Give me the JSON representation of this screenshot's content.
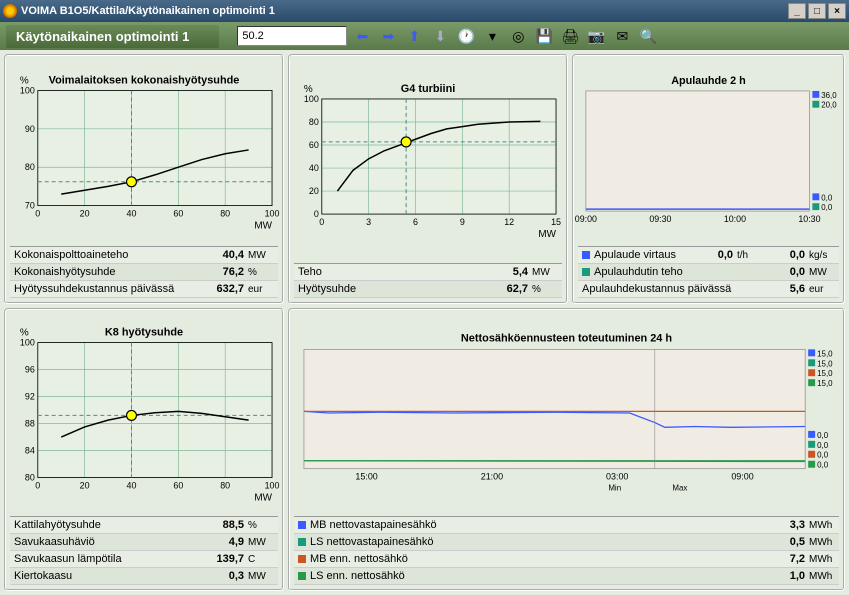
{
  "window": {
    "title": "VOIMA B1O5/Kattila/Käytönaikainen optimointi 1"
  },
  "toolbar": {
    "title": "Käytönaikainen optimointi 1",
    "input_value": "50.2"
  },
  "colors": {
    "grid": "#7fb89a",
    "bg_chart": "#e8f0e4",
    "axis": "#000",
    "curve": "#000",
    "marker_fill": "#ffff00",
    "marker_stroke": "#000",
    "crosshair": "#4a8a8a",
    "blue": "#3a5aff",
    "teal": "#1a9a7a",
    "orange": "#cc5522",
    "green": "#2a9a4a"
  },
  "chart1": {
    "title": "Voimalaitoksen kokonaishyötysuhde",
    "ylabel": "%",
    "xlabel": "MW",
    "xlim": [
      0,
      100
    ],
    "xticks": [
      0,
      20,
      40,
      60,
      80,
      100
    ],
    "ylim": [
      70,
      100
    ],
    "yticks": [
      70,
      80,
      90,
      100
    ],
    "curve": [
      [
        10,
        73
      ],
      [
        20,
        74
      ],
      [
        30,
        75
      ],
      [
        40,
        76.2
      ],
      [
        50,
        78
      ],
      [
        60,
        80
      ],
      [
        70,
        82
      ],
      [
        80,
        83.5
      ],
      [
        90,
        84.5
      ]
    ],
    "marker": [
      40,
      76.2
    ],
    "rows": [
      {
        "label": "Kokonaispolttoaineteho",
        "val": "40,4",
        "unit": "MW"
      },
      {
        "label": "Kokonaishyötysuhde",
        "val": "76,2",
        "unit": "%"
      },
      {
        "label": "Hyötyssuhdekustannus päivässä",
        "val": "632,7",
        "unit": "eur"
      }
    ]
  },
  "chart2": {
    "title": "G4 turbiini",
    "ylabel": "%",
    "xlabel": "MW",
    "xlim": [
      0,
      15
    ],
    "xticks": [
      0,
      3,
      6,
      9,
      12,
      15
    ],
    "ylim": [
      0,
      100
    ],
    "yticks": [
      0,
      20,
      40,
      60,
      80,
      100
    ],
    "curve": [
      [
        1,
        20
      ],
      [
        2,
        38
      ],
      [
        3,
        48
      ],
      [
        4,
        55
      ],
      [
        5,
        60
      ],
      [
        6,
        65
      ],
      [
        7,
        70
      ],
      [
        8,
        74
      ],
      [
        9,
        76
      ],
      [
        10,
        78
      ],
      [
        12,
        80
      ],
      [
        14,
        80.5
      ]
    ],
    "marker": [
      5.4,
      62.7
    ],
    "rows": [
      {
        "label": "Teho",
        "val": "5,4",
        "unit": "MW"
      },
      {
        "label": "Hyötysuhde",
        "val": "62,7",
        "unit": "%"
      }
    ]
  },
  "chart3": {
    "title": "Apulauhde 2 h",
    "xlim": [
      0,
      3
    ],
    "xticks": [
      "09:00",
      "09:30",
      "10:00",
      "10:30"
    ],
    "legend": [
      {
        "label": "36,0",
        "color": "#3a5aff"
      },
      {
        "label": "20,0",
        "color": "#1a9a7a"
      }
    ],
    "base_legend": [
      {
        "label": "0,0",
        "color": "#3a5aff"
      },
      {
        "label": "0,0",
        "color": "#1a9a7a"
      }
    ],
    "rows": [
      {
        "color": "#3a5aff",
        "label": "Apulaude virtaus",
        "val": "0,0",
        "unit": "t/h",
        "val2": "0,0",
        "unit2": "kg/s"
      },
      {
        "color": "#1a9a7a",
        "label": "Apulauhdutin teho",
        "val": "0,0",
        "unit": "MW"
      },
      {
        "label": "Apulauhdekustannus päivässä",
        "val": "5,6",
        "unit": "eur"
      }
    ]
  },
  "chart4": {
    "title": "K8 hyötysuhde",
    "ylabel": "%",
    "xlabel": "MW",
    "xlim": [
      0,
      100
    ],
    "xticks": [
      0,
      20,
      40,
      60,
      80,
      100
    ],
    "ylim": [
      80,
      100
    ],
    "yticks": [
      80,
      84,
      88,
      92,
      96,
      100
    ],
    "curve": [
      [
        10,
        86
      ],
      [
        20,
        87.5
      ],
      [
        30,
        88.5
      ],
      [
        40,
        89.2
      ],
      [
        50,
        89.6
      ],
      [
        60,
        89.8
      ],
      [
        70,
        89.5
      ],
      [
        80,
        89
      ],
      [
        90,
        88.5
      ]
    ],
    "marker": [
      40,
      89.2
    ],
    "rows": [
      {
        "label": "Kattilahyötysuhde",
        "val": "88,5",
        "unit": "%"
      },
      {
        "label": "Savukaasuhäviö",
        "val": "4,9",
        "unit": "MW"
      },
      {
        "label": "Savukaasun lämpötila",
        "val": "139,7",
        "unit": "C"
      },
      {
        "label": "Kiertokaasu",
        "val": "0,3",
        "unit": "MW"
      }
    ]
  },
  "chart5": {
    "title": "Nettosähköennusteen toteutuminen 24 h",
    "xticks": [
      "15:00",
      "21:00",
      "03:00",
      "09:00"
    ],
    "sublabels": [
      "Min",
      "Max"
    ],
    "legend": [
      {
        "label": "15,0",
        "color": "#3a5aff"
      },
      {
        "label": "15,0",
        "color": "#1a9a7a"
      },
      {
        "label": "15,0",
        "color": "#cc5522"
      },
      {
        "label": "15,0",
        "color": "#2a9a4a"
      }
    ],
    "base_legend": [
      {
        "label": "0,0",
        "color": "#3a5aff"
      },
      {
        "label": "0,0",
        "color": "#1a9a7a"
      },
      {
        "label": "0,0",
        "color": "#cc5522"
      },
      {
        "label": "0,0",
        "color": "#2a9a4a"
      }
    ],
    "series": {
      "blue": [
        [
          0,
          7.2
        ],
        [
          5,
          7.0
        ],
        [
          15,
          7.1
        ],
        [
          30,
          7.0
        ],
        [
          50,
          7.1
        ],
        [
          65,
          7.0
        ],
        [
          70,
          5.8
        ],
        [
          72,
          5.2
        ],
        [
          78,
          5.3
        ],
        [
          85,
          5.2
        ],
        [
          100,
          5.3
        ]
      ],
      "teal": [
        [
          0,
          1.0
        ],
        [
          100,
          0.9
        ]
      ],
      "orange": [
        [
          0,
          7.2
        ],
        [
          100,
          7.2
        ]
      ],
      "green": [
        [
          0,
          1.0
        ],
        [
          100,
          1.0
        ]
      ]
    },
    "rows": [
      {
        "color": "#3a5aff",
        "label": "MB nettovastapainesähkö",
        "val": "3,3",
        "unit": "MWh"
      },
      {
        "color": "#1a9a7a",
        "label": "LS nettovastapainesähkö",
        "val": "0,5",
        "unit": "MWh"
      },
      {
        "color": "#cc5522",
        "label": "MB enn. nettosähkö",
        "val": "7,2",
        "unit": "MWh"
      },
      {
        "color": "#2a9a4a",
        "label": "LS enn. nettosähkö",
        "val": "1,0",
        "unit": "MWh"
      }
    ]
  }
}
